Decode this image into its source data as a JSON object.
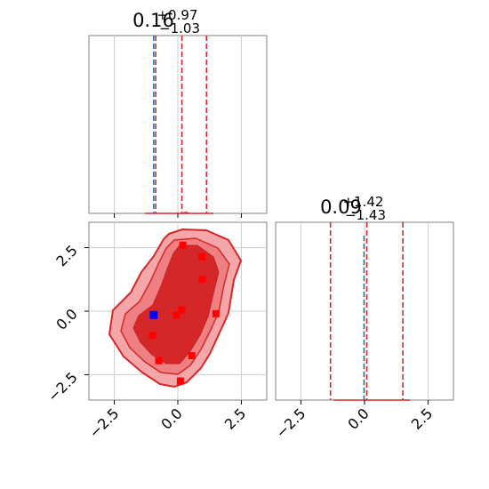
{
  "chart_data": {
    "type": "corner",
    "colors": {
      "contour": "#d62728",
      "fill_outer": "#f4a6a8",
      "fill_inner": "#d62728",
      "truth_line": "#1f77b4",
      "markers": "#ff0000",
      "highlight_marker": "#0000ff",
      "grid": "#cccccc",
      "frame": "#808080"
    },
    "panels": [
      {
        "id": "hist-x",
        "kind": "histogram",
        "title": {
          "main": "0.16",
          "sup": "+0.97",
          "sub": "−1.03"
        },
        "xlim": [
          -3.5,
          3.5
        ],
        "median": 0.16,
        "quantile_lines": [
          -0.87,
          0.16,
          1.13
        ],
        "truth": -0.95,
        "grid_x": [
          -2.5,
          0.0,
          2.5
        ],
        "grid": true
      },
      {
        "id": "hist-y",
        "kind": "histogram",
        "title": {
          "main": "0.09",
          "sup": "+1.42",
          "sub": "−1.43"
        },
        "xlim": [
          -3.5,
          3.5
        ],
        "median": 0.09,
        "quantile_lines": [
          -1.34,
          0.09,
          1.51
        ],
        "truth": -0.02,
        "grid_x": [
          -2.5,
          0.0,
          2.5
        ],
        "grid": true,
        "xticklabels": [
          "−2.5",
          "0.0",
          "2.5"
        ]
      },
      {
        "id": "joint",
        "kind": "2d-density",
        "xlim": [
          -3.5,
          3.5
        ],
        "ylim": [
          -3.5,
          3.5
        ],
        "grid": true,
        "xticklabels": [
          "−2.5",
          "0.0",
          "2.5"
        ],
        "yticklabels": [
          "2.5",
          "0.0",
          "−2.5"
        ],
        "xticks": [
          -2.5,
          0.0,
          2.5
        ],
        "yticks": [
          2.5,
          0.0,
          -2.5
        ],
        "points": [
          {
            "x": 0.2,
            "y": 2.6
          },
          {
            "x": 0.95,
            "y": 2.15
          },
          {
            "x": 0.95,
            "y": 1.25
          },
          {
            "x": 0.15,
            "y": 0.05
          },
          {
            "x": -0.05,
            "y": -0.15
          },
          {
            "x": 1.5,
            "y": -0.1
          },
          {
            "x": -1.0,
            "y": -0.95
          },
          {
            "x": -0.75,
            "y": -1.95
          },
          {
            "x": 0.55,
            "y": -1.75
          },
          {
            "x": 0.1,
            "y": -2.75
          }
        ],
        "highlight_point": {
          "x": -0.95,
          "y": -0.15
        }
      }
    ]
  }
}
